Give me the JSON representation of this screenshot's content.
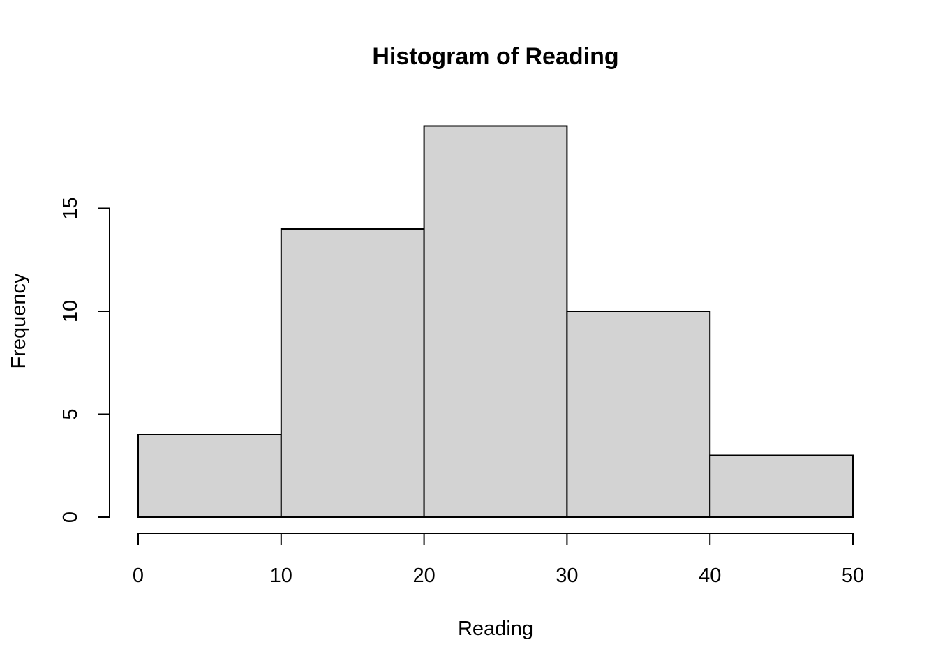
{
  "chart_data": {
    "type": "bar",
    "title": "Histogram of Reading",
    "xlabel": "Reading",
    "ylabel": "Frequency",
    "bins": [
      {
        "start": 0,
        "end": 10,
        "count": 4
      },
      {
        "start": 10,
        "end": 20,
        "count": 14
      },
      {
        "start": 20,
        "end": 30,
        "count": 19
      },
      {
        "start": 30,
        "end": 40,
        "count": 10
      },
      {
        "start": 40,
        "end": 50,
        "count": 3
      }
    ],
    "x_ticks": [
      0,
      10,
      20,
      30,
      40,
      50
    ],
    "y_ticks": [
      0,
      5,
      10,
      15
    ],
    "xlim": [
      0,
      50
    ],
    "ylim": [
      0,
      19
    ],
    "grid": false,
    "colors": {
      "bar_fill": "#d3d3d3",
      "bar_stroke": "#000000"
    }
  }
}
